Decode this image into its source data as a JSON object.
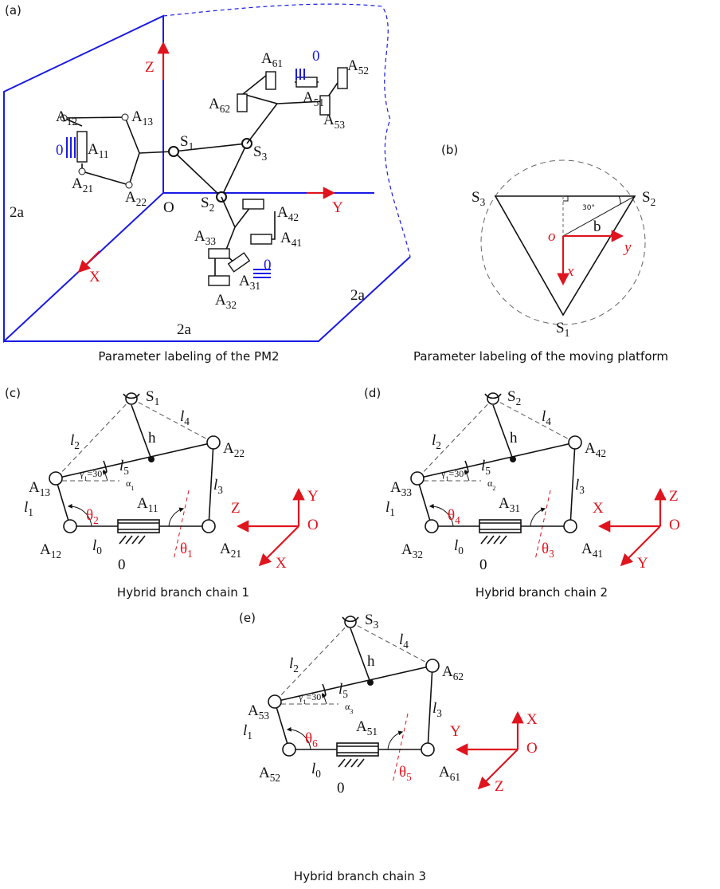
{
  "panel_a": {
    "tag": "(a)",
    "caption": "Parameter labeling of the PM2",
    "labels": [
      {
        "base": "Z"
      },
      {
        "base": "Y"
      },
      {
        "base": "X"
      },
      {
        "base": "O"
      },
      {
        "base": "2a"
      },
      {
        "base": "2a"
      },
      {
        "base": "2a"
      },
      {
        "base": "A",
        "sub": "12"
      },
      {
        "base": "A",
        "sub": "13"
      },
      {
        "base": "A",
        "sub": "11"
      },
      {
        "base": "0"
      },
      {
        "base": "A",
        "sub": "21"
      },
      {
        "base": "A",
        "sub": "22"
      },
      {
        "base": "S",
        "sub": "1"
      },
      {
        "base": "S",
        "sub": "2"
      },
      {
        "base": "S",
        "sub": "3"
      },
      {
        "base": "A",
        "sub": "61"
      },
      {
        "base": "A",
        "sub": "52"
      },
      {
        "base": "A",
        "sub": "51"
      },
      {
        "base": "0"
      },
      {
        "base": "A",
        "sub": "62"
      },
      {
        "base": "A",
        "sub": "53"
      },
      {
        "base": "A",
        "sub": "42"
      },
      {
        "base": "A",
        "sub": "41"
      },
      {
        "base": "A",
        "sub": "33"
      },
      {
        "base": "A",
        "sub": "31"
      },
      {
        "base": "0"
      },
      {
        "base": "A",
        "sub": "32"
      }
    ]
  },
  "panel_b": {
    "tag": "(b)",
    "caption": "Parameter labeling of the moving platform",
    "labels": [
      {
        "base": "S",
        "sub": "3"
      },
      {
        "base": "S",
        "sub": "2"
      },
      {
        "base": "S",
        "sub": "1"
      },
      {
        "base": "30°"
      },
      {
        "base": "o"
      },
      {
        "base": "b"
      },
      {
        "base": "y"
      },
      {
        "base": "x"
      }
    ]
  },
  "chains": [
    {
      "tag": "(c)",
      "caption": "Hybrid branch chain 1",
      "labels": [
        {
          "base": "S",
          "sub": "1"
        },
        {
          "base": "l",
          "sub": "4"
        },
        {
          "base": "l",
          "sub": "2"
        },
        {
          "base": "h"
        },
        {
          "base": "A",
          "sub": "22"
        },
        {
          "base": "γ",
          "sub": "1",
          "tail": "=30°"
        },
        {
          "base": "l",
          "sub": "5"
        },
        {
          "base": "A",
          "sub": "13"
        },
        {
          "base": "α",
          "sub": "1"
        },
        {
          "base": "l",
          "sub": "1"
        },
        {
          "base": "θ",
          "sub": "2"
        },
        {
          "base": "A",
          "sub": "11"
        },
        {
          "base": "l",
          "sub": "3"
        },
        {
          "base": "A",
          "sub": "12"
        },
        {
          "base": "l",
          "sub": "0"
        },
        {
          "base": "0"
        },
        {
          "base": "θ",
          "sub": "1"
        },
        {
          "base": "A",
          "sub": "21"
        },
        {
          "base": "Y"
        },
        {
          "base": "Z"
        },
        {
          "base": "O"
        },
        {
          "base": "X"
        }
      ]
    },
    {
      "tag": "(d)",
      "caption": "Hybrid branch chain 2",
      "labels": [
        {
          "base": "S",
          "sub": "2"
        },
        {
          "base": "l",
          "sub": "4"
        },
        {
          "base": "l",
          "sub": "2"
        },
        {
          "base": "h"
        },
        {
          "base": "A",
          "sub": "42"
        },
        {
          "base": "γ",
          "sub": "1",
          "tail": "=30°"
        },
        {
          "base": "l",
          "sub": "5"
        },
        {
          "base": "A",
          "sub": "33"
        },
        {
          "base": "α",
          "sub": "2"
        },
        {
          "base": "l",
          "sub": "1"
        },
        {
          "base": "θ",
          "sub": "4"
        },
        {
          "base": "A",
          "sub": "31"
        },
        {
          "base": "l",
          "sub": "3"
        },
        {
          "base": "A",
          "sub": "32"
        },
        {
          "base": "l",
          "sub": "0"
        },
        {
          "base": "0"
        },
        {
          "base": "θ",
          "sub": "3"
        },
        {
          "base": "A",
          "sub": "41"
        },
        {
          "base": "Z"
        },
        {
          "base": "X"
        },
        {
          "base": "O"
        },
        {
          "base": "Y"
        }
      ]
    },
    {
      "tag": "(e)",
      "caption": "Hybrid branch chain 3",
      "labels": [
        {
          "base": "S",
          "sub": "3"
        },
        {
          "base": "l",
          "sub": "4"
        },
        {
          "base": "l",
          "sub": "2"
        },
        {
          "base": "h"
        },
        {
          "base": "A",
          "sub": "62"
        },
        {
          "base": "γ",
          "sub": "1",
          "tail": "=30°"
        },
        {
          "base": "l",
          "sub": "5"
        },
        {
          "base": "A",
          "sub": "53"
        },
        {
          "base": "α",
          "sub": "3"
        },
        {
          "base": "l",
          "sub": "1"
        },
        {
          "base": "θ",
          "sub": "6"
        },
        {
          "base": "A",
          "sub": "51"
        },
        {
          "base": "l",
          "sub": "3"
        },
        {
          "base": "A",
          "sub": "52"
        },
        {
          "base": "l",
          "sub": "0"
        },
        {
          "base": "0"
        },
        {
          "base": "θ",
          "sub": "5"
        },
        {
          "base": "A",
          "sub": "61"
        },
        {
          "base": "X"
        },
        {
          "base": "Y"
        },
        {
          "base": "O"
        },
        {
          "base": "Z"
        }
      ]
    }
  ]
}
